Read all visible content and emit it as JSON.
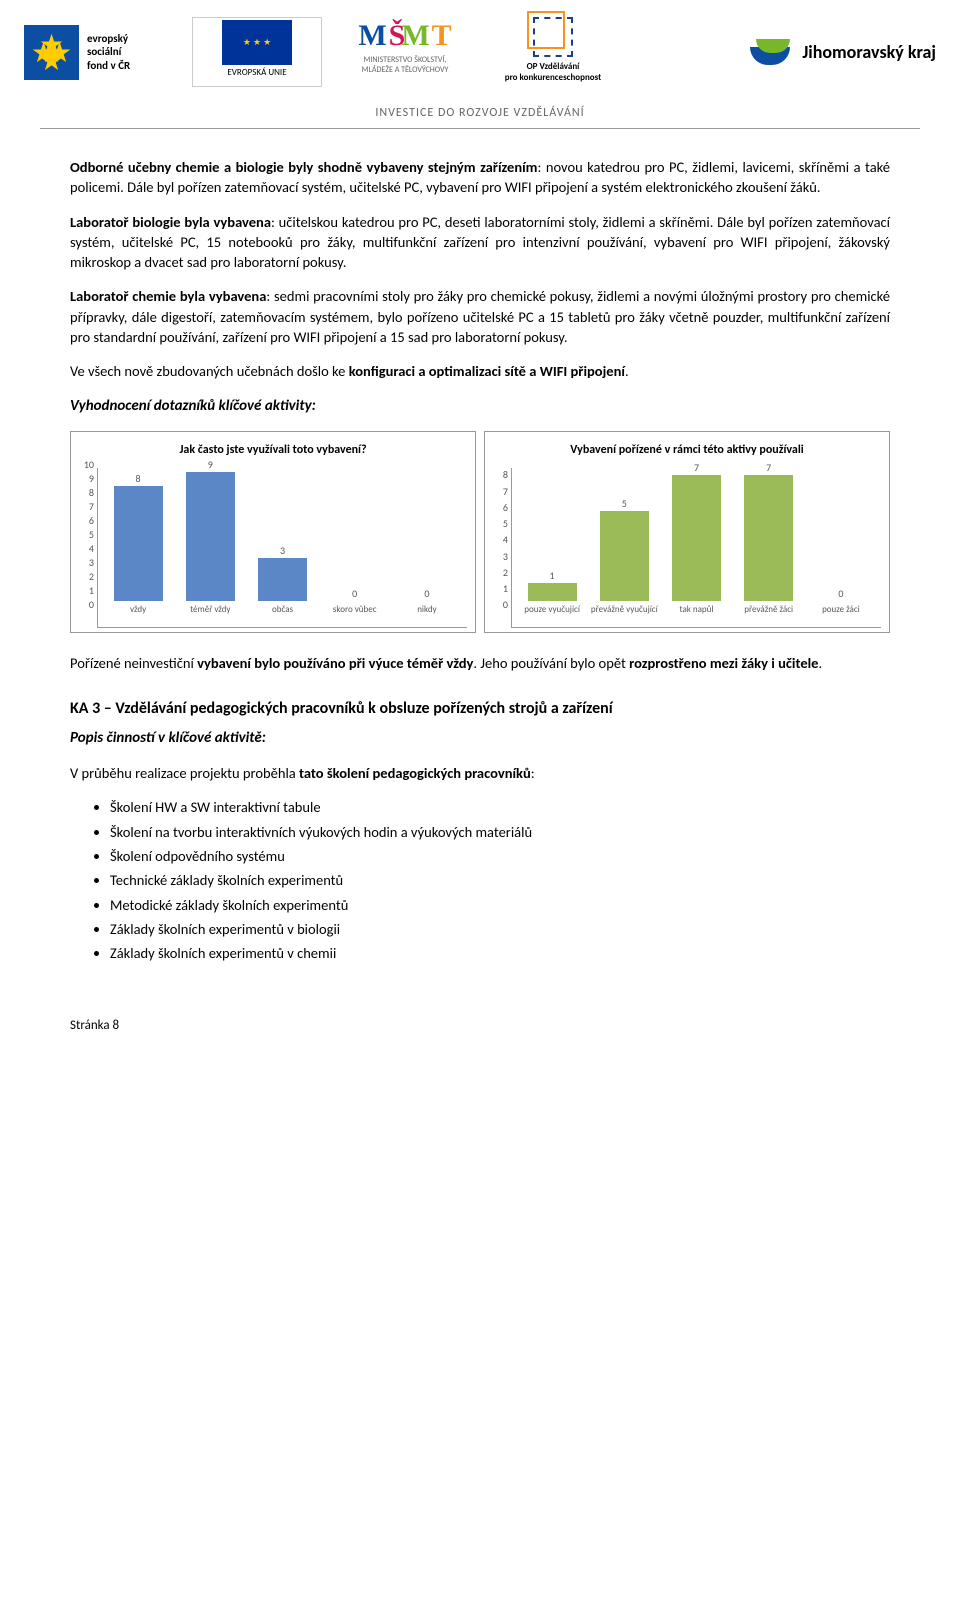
{
  "header": {
    "esf_text": "evropský\nsociální\nfond v ČR",
    "eu_text": "EVROPSKÁ UNIE",
    "msmt_text": "MINISTERSTVO ŠKOLSTVÍ,\nMLÁDEŽE A TĚLOVÝCHOVY",
    "op_text": "OP Vzdělávání\npro konkurenceschopnost",
    "jmk_text": "Jihomoravský kraj",
    "investice": "INVESTICE DO ROZVOJE VZDĚLÁVÁNÍ"
  },
  "paragraphs": {
    "p1_a": "Odborné učebny chemie a biologie byly shodně vybaveny stejným zařízením",
    "p1_b": ": novou katedrou pro PC, židlemi, lavicemi, skříněmi a také policemi. Dále byl pořízen zatemňovací systém, učitelské PC, vybavení pro WIFI připojení a systém elektronického zkoušení žáků.",
    "p2_a": "Laboratoř biologie byla vybavena",
    "p2_b": ": učitelskou katedrou pro PC, deseti laboratorními stoly, židlemi a skříněmi. Dále byl pořízen zatemňovací systém, učitelské PC, 15 notebooků pro žáky, multifunkční zařízení pro intenzivní používání, vybavení pro WIFI připojení, žákovský mikroskop a dvacet sad pro laboratorní pokusy.",
    "p3_a": "Laboratoř chemie byla vybavena",
    "p3_b": ": sedmi pracovními stoly pro žáky pro chemické pokusy, židlemi a novými úložnými prostory pro chemické přípravky, dále digestoří, zatemňovacím systémem, bylo pořízeno učitelské PC a 15 tabletů pro žáky včetně pouzder, multifunkční zařízení pro standardní používání, zařízení pro WIFI připojení a 15 sad pro laboratorní pokusy.",
    "p4_a": "Ve všech nově zbudovaných učebnách došlo ke ",
    "p4_b": "konfiguraci a optimalizaci sítě a WIFI připojení",
    "p4_c": ".",
    "vyhodnoceni": "Vyhodnocení dotazníků klíčové aktivity:",
    "p5_a": "Pořízené neinvestiční ",
    "p5_b": "vybavení bylo používáno při výuce téměř vždy",
    "p5_c": ". Jeho používání bylo opět ",
    "p5_d": "rozprostřeno mezi žáky i učitele",
    "p5_e": "."
  },
  "ka3": {
    "title": "KA 3 – Vzdělávání pedagogických pracovníků k obsluze pořízených strojů a zařízení",
    "popis": "Popis činností v klíčové aktivitě:",
    "intro_a": "V průběhu realizace projektu proběhla ",
    "intro_b": "tato školení pedagogických pracovníků",
    "intro_c": ":",
    "bullets": [
      "Školení HW a SW interaktivní tabule",
      "Školení na tvorbu interaktivních výukových hodin a výukových materiálů",
      "Školení odpovědního systému",
      "Technické základy školních experimentů",
      "Metodické základy školních experimentů",
      "Základy školních experimentů v biologii",
      "Základy školních experimentů v chemii"
    ]
  },
  "chart1": {
    "type": "bar",
    "title": "Jak často jste využívali toto vybavení?",
    "ylim": [
      0,
      10
    ],
    "ytick_step": 1,
    "bar_color": "#5b87c6",
    "label_color": "#595959",
    "font_size": 10,
    "categories": [
      "vždy",
      "téměř vždy",
      "občas",
      "skoro vůbec",
      "nikdy"
    ],
    "values": [
      8,
      9,
      3,
      0,
      0
    ]
  },
  "chart2": {
    "type": "bar",
    "title": "Vybavení pořízené v rámci této aktivy používali",
    "ylim": [
      0,
      8
    ],
    "ytick_step": 1,
    "bar_color": "#9bbb59",
    "label_color": "#595959",
    "font_size": 10,
    "categories": [
      "pouze vyučující",
      "převážně vyučující",
      "tak napůl",
      "převážně žáci",
      "pouze žáci"
    ],
    "values": [
      1,
      5,
      7,
      7,
      0
    ]
  },
  "footer": "Stránka 8"
}
